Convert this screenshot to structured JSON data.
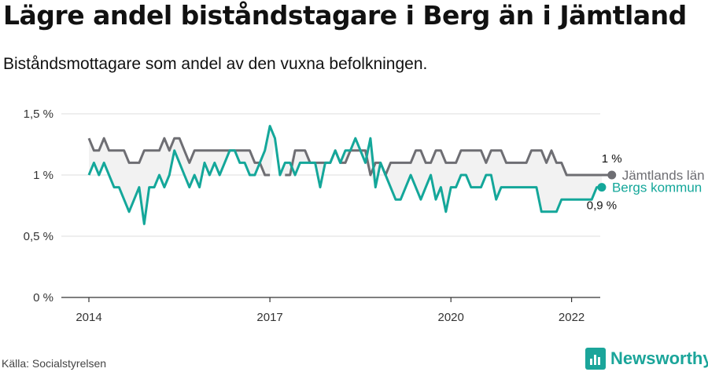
{
  "title": "Lägre andel biståndstagare i Berg än i Jämtland",
  "subtitle": "Biståndsmottagare som andel av den vuxna befolkningen.",
  "source": "Källa: Socialstyrelsen",
  "brand": {
    "name": "Newsworthy",
    "icon": "newsworthy-logo-icon"
  },
  "colors": {
    "jamtland": "#6e6e73",
    "berg": "#14a79a",
    "band": "#f2f2f2",
    "grid": "#dddddd"
  },
  "chart_data": {
    "type": "line",
    "ylim": [
      0,
      1.5
    ],
    "yticks": [
      {
        "value": 0,
        "label": "0 %"
      },
      {
        "value": 0.5,
        "label": "0,5 %"
      },
      {
        "value": 1.0,
        "label": "1 %"
      },
      {
        "value": 1.5,
        "label": "1,5 %"
      }
    ],
    "xticks": [
      {
        "year": 2014,
        "label": "2014"
      },
      {
        "year": 2017,
        "label": "2017"
      },
      {
        "year": 2020,
        "label": "2020"
      },
      {
        "year": 2022,
        "label": "2022"
      }
    ],
    "x_start": "2014-01",
    "grid": true,
    "series": [
      {
        "name": "Jämtlands län",
        "end_label": "1 %",
        "values": [
          1.3,
          1.2,
          1.2,
          1.3,
          1.2,
          1.2,
          1.2,
          1.2,
          1.1,
          1.1,
          1.1,
          1.2,
          1.2,
          1.2,
          1.2,
          1.3,
          1.2,
          1.3,
          1.3,
          1.2,
          1.1,
          1.2,
          1.2,
          1.2,
          1.2,
          1.2,
          1.2,
          1.2,
          1.2,
          1.2,
          1.2,
          1.2,
          1.2,
          1.1,
          1.1,
          1.0,
          1.0,
          null,
          null,
          1.0,
          1.0,
          1.2,
          1.2,
          1.2,
          1.1,
          1.1,
          1.1,
          1.1,
          1.1,
          1.2,
          1.1,
          1.1,
          1.2,
          1.2,
          1.2,
          1.2,
          1.0,
          1.1,
          1.1,
          1.0,
          1.1,
          1.1,
          1.1,
          1.1,
          1.1,
          1.2,
          1.2,
          1.1,
          1.1,
          1.2,
          1.2,
          1.1,
          1.1,
          1.1,
          1.2,
          1.2,
          1.2,
          1.2,
          1.2,
          1.1,
          1.2,
          1.2,
          1.2,
          1.1,
          1.1,
          1.1,
          1.1,
          1.1,
          1.2,
          1.2,
          1.2,
          1.1,
          1.2,
          1.1,
          1.1,
          1.0,
          1.0,
          1.0,
          1.0,
          1.0,
          1.0,
          1.0,
          1.0,
          1.0,
          1.0
        ]
      },
      {
        "name": "Bergs kommun",
        "end_label": "0,9 %",
        "values": [
          1.0,
          1.1,
          1.0,
          1.1,
          1.0,
          0.9,
          0.9,
          0.8,
          0.7,
          0.8,
          0.9,
          0.6,
          0.9,
          0.9,
          1.0,
          0.9,
          1.0,
          1.2,
          1.1,
          1.0,
          0.9,
          1.0,
          0.9,
          1.1,
          1.0,
          1.1,
          1.0,
          1.1,
          1.2,
          1.2,
          1.1,
          1.1,
          1.0,
          1.0,
          1.1,
          1.2,
          1.4,
          1.3,
          1.0,
          1.1,
          1.1,
          1.0,
          1.1,
          1.1,
          1.1,
          1.1,
          0.9,
          1.1,
          1.1,
          1.2,
          1.1,
          1.2,
          1.2,
          1.3,
          1.2,
          1.1,
          1.3,
          0.9,
          1.1,
          1.0,
          0.9,
          0.8,
          0.8,
          0.9,
          1.0,
          0.9,
          0.8,
          0.9,
          1.0,
          0.8,
          0.9,
          0.7,
          0.9,
          0.9,
          1.0,
          1.0,
          0.9,
          0.9,
          0.9,
          1.0,
          1.0,
          0.8,
          0.9,
          0.9,
          0.9,
          0.9,
          0.9,
          0.9,
          0.9,
          0.9,
          0.7,
          0.7,
          0.7,
          0.7,
          0.8,
          0.8,
          0.8,
          0.8,
          0.8,
          0.8,
          0.8,
          0.9,
          0.9
        ]
      }
    ]
  }
}
